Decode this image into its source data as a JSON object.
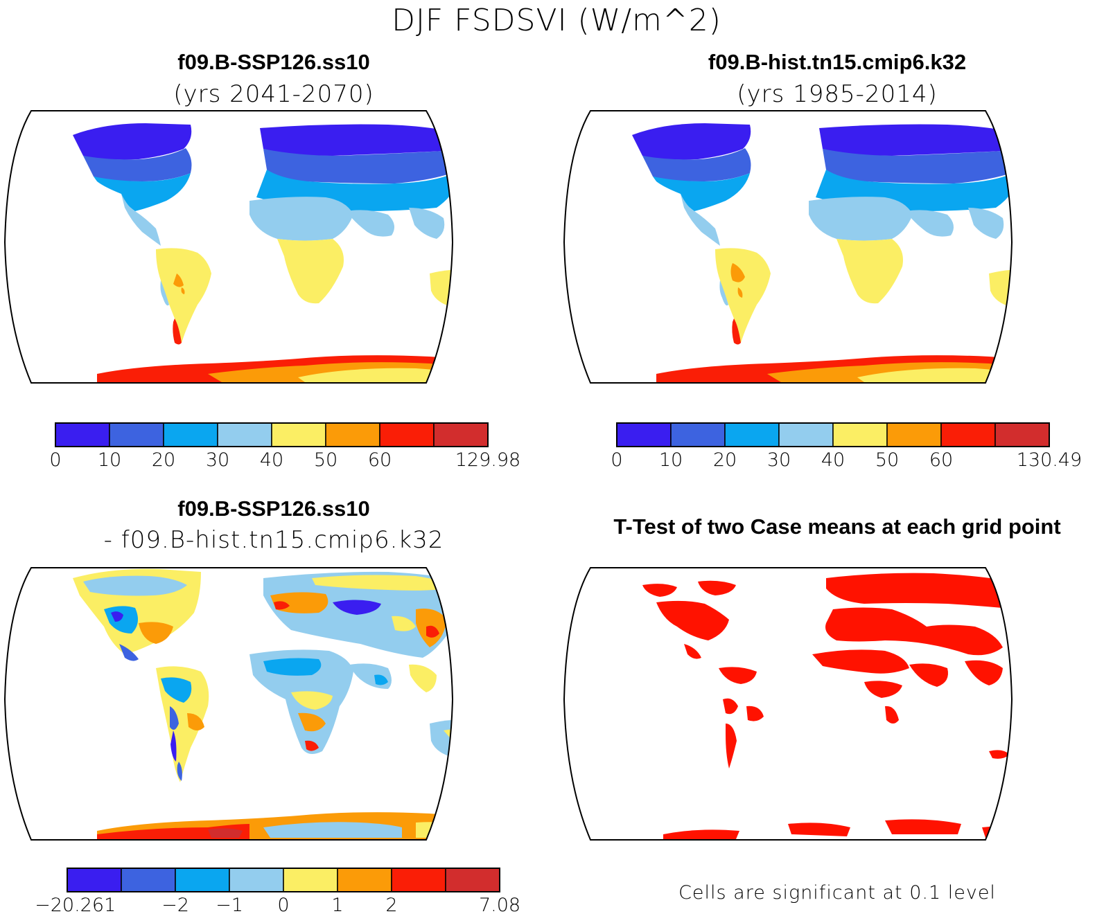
{
  "title": "DJF FSDSVI (W/m^2)",
  "panels": {
    "top_left": {
      "title": "f09.B-SSP126.ss10",
      "subtitle": "(yrs 2041-2070)"
    },
    "top_right": {
      "title": "f09.B-hist.tn15.cmip6.k32",
      "subtitle": "(yrs 1985-2014)"
    },
    "bottom_left": {
      "title": "f09.B-SSP126.ss10",
      "subtitle": "- f09.B-hist.tn15.cmip6.k32"
    },
    "bottom_right": {
      "title": "T-Test of two Case means at each grid point",
      "note": "Cells are significant at 0.1 level"
    }
  },
  "colorbars": {
    "case": {
      "colors": [
        "#3a1ef0",
        "#3d63e0",
        "#0aa6f0",
        "#93cdee",
        "#fbee64",
        "#fb9b08",
        "#fa1e06",
        "#d22d2d"
      ]
    },
    "top_left_labels": [
      "0",
      "10",
      "20",
      "30",
      "40",
      "50",
      "60",
      "129.98"
    ],
    "top_right_labels": [
      "0",
      "10",
      "20",
      "30",
      "40",
      "50",
      "60",
      "130.49"
    ],
    "diff": {
      "colors": [
        "#3a1ef0",
        "#3d63e0",
        "#0aa6f0",
        "#93cdee",
        "#fbee64",
        "#fb9b08",
        "#fa1e06",
        "#d22d2d"
      ],
      "labels": [
        "-20.261",
        "-2",
        "-1",
        "0",
        "1",
        "2",
        "7.08"
      ]
    }
  },
  "significance_color": "#ff1200"
}
